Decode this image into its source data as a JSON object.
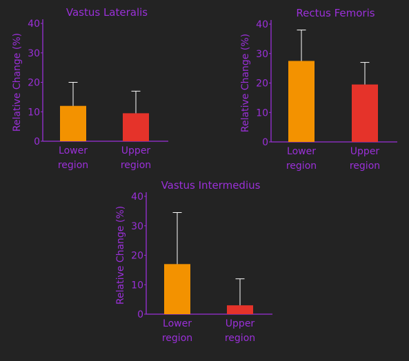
{
  "colors": {
    "background": "#232323",
    "text": "#9b30d9",
    "axis": "#9b30d9",
    "lower_bar": "#f39200",
    "upper_bar": "#e5332a",
    "error_bar": "#ffffff"
  },
  "chart_data": [
    {
      "type": "bar",
      "title": "Vastus Lateralis",
      "xlabel": "",
      "ylabel": "Relative Change (%)",
      "ylim": [
        0,
        40
      ],
      "yticks": [
        0,
        10,
        20,
        30,
        40
      ],
      "grid": false,
      "categories": [
        [
          "Lower",
          "region"
        ],
        [
          "Upper",
          "region"
        ]
      ],
      "values": [
        12,
        9.5
      ],
      "errors": [
        8,
        7.5
      ],
      "bar_colors": [
        "#f39200",
        "#e5332a"
      ]
    },
    {
      "type": "bar",
      "title": "Rectus Femoris",
      "xlabel": "",
      "ylabel": "Relative Change (%)",
      "ylim": [
        0,
        40
      ],
      "yticks": [
        0,
        10,
        20,
        30,
        40
      ],
      "grid": false,
      "categories": [
        [
          "Lower",
          "region"
        ],
        [
          "Upper",
          "region"
        ]
      ],
      "values": [
        27.5,
        19.5
      ],
      "errors": [
        10.5,
        7.5
      ],
      "bar_colors": [
        "#f39200",
        "#e5332a"
      ]
    },
    {
      "type": "bar",
      "title": "Vastus Intermedius",
      "xlabel": "",
      "ylabel": "Relative Change (%)",
      "ylim": [
        0,
        40
      ],
      "yticks": [
        0,
        10,
        20,
        30,
        40
      ],
      "grid": false,
      "categories": [
        [
          "Lower",
          "region"
        ],
        [
          "Upper",
          "region"
        ]
      ],
      "values": [
        17,
        3
      ],
      "errors": [
        17.5,
        9
      ],
      "bar_colors": [
        "#f39200",
        "#e5332a"
      ]
    }
  ]
}
